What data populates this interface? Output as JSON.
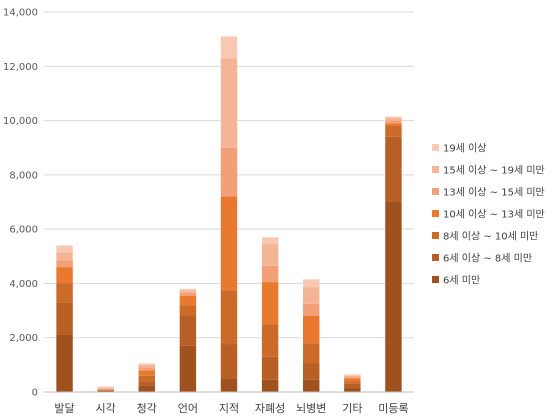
{
  "chart_data": {
    "type": "bar",
    "stacked": true,
    "grid": true,
    "legend_position": "right",
    "ylim": [
      0,
      14000
    ],
    "y_ticks": [
      "0",
      "2,000",
      "4,000",
      "6,000",
      "8,000",
      "10,000",
      "12,000",
      "14,000"
    ],
    "categories": [
      "발달",
      "시각",
      "청각",
      "언어",
      "지적",
      "자폐성",
      "뇌병변",
      "기타",
      "미등록"
    ],
    "series": [
      {
        "name": "6세 미만",
        "color": "#A0521E",
        "values": [
          2100,
          40,
          250,
          1700,
          500,
          450,
          450,
          150,
          7000
        ]
      },
      {
        "name": "6세 이상 ~ 8세 미만",
        "color": "#B85F26",
        "values": [
          1200,
          20,
          150,
          1100,
          1250,
          850,
          600,
          150,
          2400
        ]
      },
      {
        "name": "8세 이상 ~ 10세 미만",
        "color": "#CC6A2A",
        "values": [
          700,
          20,
          200,
          400,
          2000,
          1200,
          750,
          100,
          400
        ]
      },
      {
        "name": "10세 이상 ~ 13세 미만",
        "color": "#E8792E",
        "values": [
          600,
          20,
          200,
          350,
          3450,
          1550,
          1000,
          100,
          100
        ]
      },
      {
        "name": "13세 이상 ~ 15세 미만",
        "color": "#F2A077",
        "values": [
          250,
          20,
          100,
          100,
          1800,
          600,
          450,
          50,
          100
        ]
      },
      {
        "name": "15세 이상 ~ 19세 미만",
        "color": "#F4B597",
        "values": [
          300,
          40,
          100,
          100,
          3300,
          800,
          600,
          50,
          100
        ]
      },
      {
        "name": "19세 이상",
        "color": "#F7C9B3",
        "values": [
          250,
          40,
          50,
          50,
          800,
          250,
          300,
          50,
          50
        ]
      }
    ]
  }
}
